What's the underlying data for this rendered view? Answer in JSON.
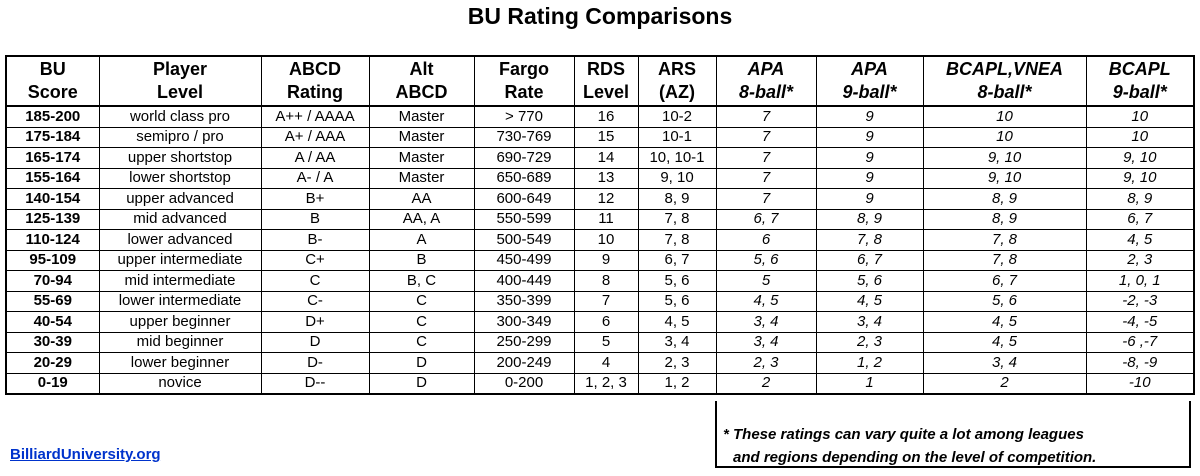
{
  "title": "BU Rating Comparisons",
  "table": {
    "headers": [
      [
        "BU",
        "Score"
      ],
      [
        "Player",
        "Level"
      ],
      [
        "ABCD",
        "Rating"
      ],
      [
        "Alt",
        "ABCD"
      ],
      [
        "Fargo",
        "Rate"
      ],
      [
        "RDS",
        "Level"
      ],
      [
        "ARS",
        "(AZ)"
      ],
      [
        "APA",
        "8-ball*"
      ],
      [
        "APA",
        "9-ball*"
      ],
      [
        "BCAPL,VNEA",
        "8-ball*"
      ],
      [
        "BCAPL",
        "9-ball*"
      ]
    ],
    "rows": [
      [
        "185-200",
        "world class pro",
        "A++ / AAAA",
        "Master",
        "> 770",
        "16",
        "10-2",
        "7",
        "9",
        "10",
        "10"
      ],
      [
        "175-184",
        "semipro / pro",
        "A+ / AAA",
        "Master",
        "730-769",
        "15",
        "10-1",
        "7",
        "9",
        "10",
        "10"
      ],
      [
        "165-174",
        "upper shortstop",
        "A / AA",
        "Master",
        "690-729",
        "14",
        "10, 10-1",
        "7",
        "9",
        "9, 10",
        "9, 10"
      ],
      [
        "155-164",
        "lower shortstop",
        "A- / A",
        "Master",
        "650-689",
        "13",
        "9, 10",
        "7",
        "9",
        "9, 10",
        "9, 10"
      ],
      [
        "140-154",
        "upper advanced",
        "B+",
        "AA",
        "600-649",
        "12",
        "8, 9",
        "7",
        "9",
        "8, 9",
        "8, 9"
      ],
      [
        "125-139",
        "mid advanced",
        "B",
        "AA, A",
        "550-599",
        "11",
        "7, 8",
        "6, 7",
        "8, 9",
        "8, 9",
        "6, 7"
      ],
      [
        "110-124",
        "lower advanced",
        "B-",
        "A",
        "500-549",
        "10",
        "7, 8",
        "6",
        "7, 8",
        "7, 8",
        "4, 5"
      ],
      [
        "95-109",
        "upper intermediate",
        "C+",
        "B",
        "450-499",
        "9",
        "6, 7",
        "5, 6",
        "6, 7",
        "7, 8",
        "2, 3"
      ],
      [
        "70-94",
        "mid intermediate",
        "C",
        "B, C",
        "400-449",
        "8",
        "5, 6",
        "5",
        "5, 6",
        "6, 7",
        "1, 0, 1"
      ],
      [
        "55-69",
        "lower intermediate",
        "C-",
        "C",
        "350-399",
        "7",
        "5, 6",
        "4, 5",
        "4, 5",
        "5, 6",
        "-2, -3"
      ],
      [
        "40-54",
        "upper beginner",
        "D+",
        "C",
        "300-349",
        "6",
        "4, 5",
        "3, 4",
        "3, 4",
        "4, 5",
        "-4, -5"
      ],
      [
        "30-39",
        "mid beginner",
        "D",
        "C",
        "250-299",
        "5",
        "3, 4",
        "3, 4",
        "2, 3",
        "4, 5",
        "-6 ,-7"
      ],
      [
        "20-29",
        "lower beginner",
        "D-",
        "D",
        "200-249",
        "4",
        "2, 3",
        "2, 3",
        "1, 2",
        "3, 4",
        "-8, -9"
      ],
      [
        "0-19",
        "novice",
        "D--",
        "D",
        "0-200",
        "1, 2, 3",
        "1, 2",
        "2",
        "1",
        "2",
        "-10"
      ]
    ]
  },
  "note": [
    "* These ratings can vary quite a lot among leagues",
    "and regions depending on the level of competition."
  ],
  "link": "BilliardUniversity.org"
}
